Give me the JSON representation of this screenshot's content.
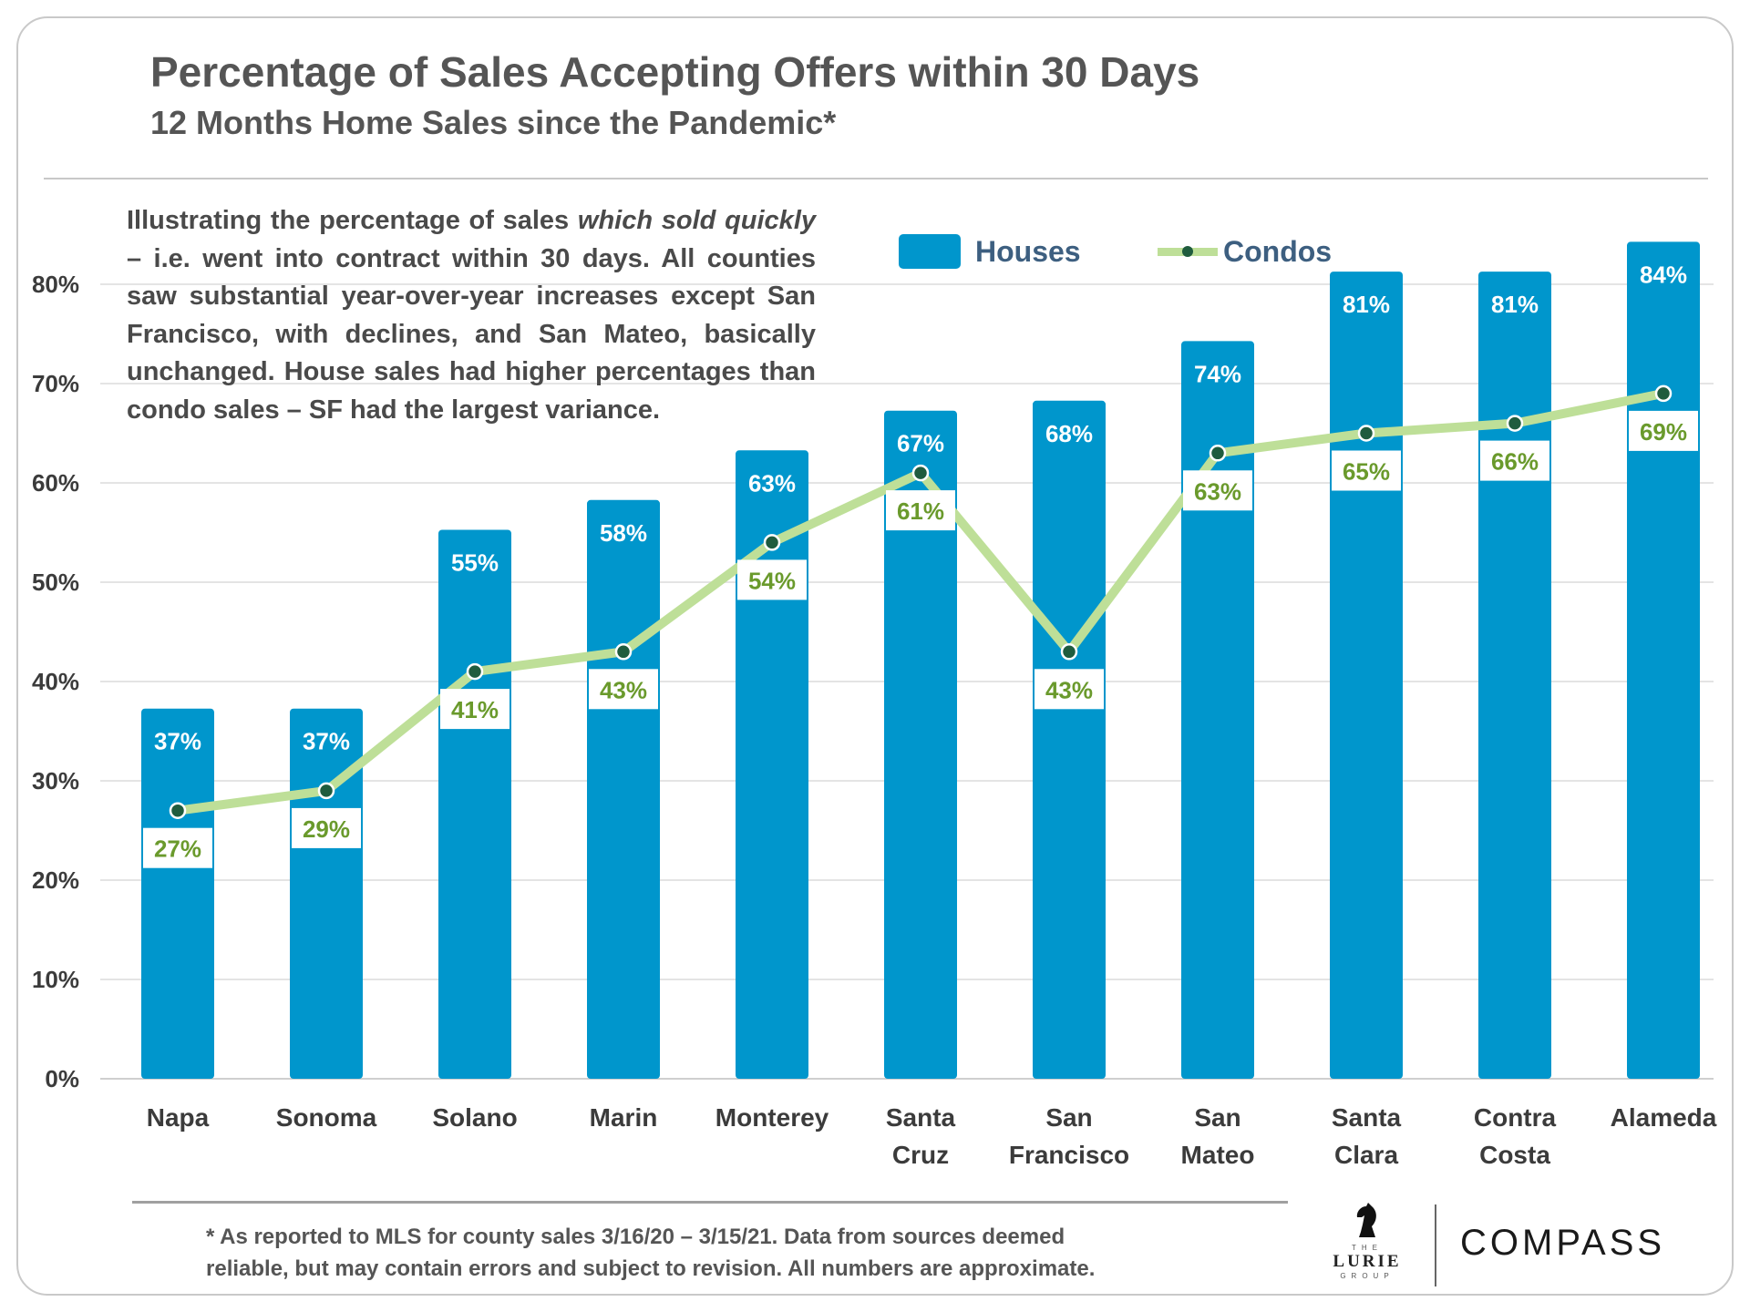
{
  "header": {
    "title": "Percentage of Sales Accepting Offers within 30 Days",
    "subtitle": "12 Months Home Sales since the Pandemic*"
  },
  "description": {
    "part1": "Illustrating the percentage of sales ",
    "emphasis": "which sold quickly",
    "part2": " – i.e. went into contract within 30 days. All counties saw substantial year-over-year increases except San Francisco, with declines, and San Mateo, basically unchanged. House sales had higher percentages than condo sales – SF had the largest variance."
  },
  "footnote": {
    "line1": "* As reported to MLS for county sales 3/16/20 – 3/15/21. Data from sources deemed",
    "line2": "reliable, but may contain errors and subject to revision. All numbers are approximate."
  },
  "logos": {
    "lurie_top": "THE",
    "lurie_main": "LURIE",
    "lurie_bottom": "GROUP",
    "compass": "COMPASS"
  },
  "colors": {
    "bar": "#0096cc",
    "line": "#bedf98",
    "marker": "#1f5c3e",
    "condo_label": "#6a9a2c",
    "axis_text": "#3b3b3b",
    "grid": "#e4e4e4"
  },
  "chart_data": {
    "type": "bar",
    "categories": [
      [
        "Napa"
      ],
      [
        "Sonoma"
      ],
      [
        "Solano"
      ],
      [
        "Marin"
      ],
      [
        "Monterey"
      ],
      [
        "Santa",
        "Cruz"
      ],
      [
        "San",
        "Francisco"
      ],
      [
        "San",
        "Mateo"
      ],
      [
        "Santa",
        "Clara"
      ],
      [
        "Contra",
        "Costa"
      ],
      [
        "Alameda"
      ]
    ],
    "series": [
      {
        "name": "Houses",
        "type": "bar",
        "values": [
          37,
          37,
          55,
          58,
          63,
          67,
          68,
          74,
          81,
          81,
          84
        ],
        "labels": [
          "37%",
          "37%",
          "55%",
          "58%",
          "63%",
          "67%",
          "68%",
          "74%",
          "81%",
          "81%",
          "84%"
        ]
      },
      {
        "name": "Condos",
        "type": "line",
        "values": [
          27,
          29,
          41,
          43,
          54,
          61,
          43,
          63,
          65,
          66,
          69
        ],
        "labels": [
          "27%",
          "29%",
          "41%",
          "43%",
          "54%",
          "61%",
          "43%",
          "63%",
          "65%",
          "66%",
          "69%"
        ]
      }
    ],
    "yticks": [
      "0%",
      "10%",
      "20%",
      "30%",
      "40%",
      "50%",
      "60%",
      "70%",
      "80%"
    ],
    "ylim": [
      0,
      85
    ],
    "grid": true,
    "legend_position": "top-right"
  }
}
